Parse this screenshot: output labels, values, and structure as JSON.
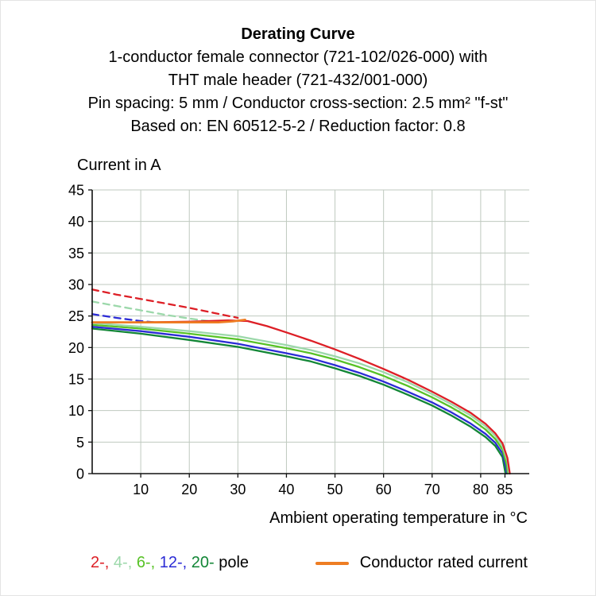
{
  "header": {
    "title": "Derating Curve",
    "lines": [
      "1-conductor female connector (721-102/026-000) with",
      "THT male header (721-432/001-000)",
      "Pin spacing: 5 mm / Conductor cross-section: 2.5 mm² \"f-st\"",
      "Based on: EN 60512-5-2 / Reduction factor: 0.8"
    ]
  },
  "chart_data": {
    "type": "line",
    "title": "Derating Curve",
    "xlabel": "Ambient operating temperature in °C",
    "ylabel": "Current in A",
    "xlim": [
      0,
      90
    ],
    "ylim": [
      0,
      45
    ],
    "xticks": [
      10,
      20,
      30,
      40,
      50,
      60,
      70,
      80,
      85
    ],
    "yticks": [
      0,
      5,
      10,
      15,
      20,
      25,
      30,
      35,
      40,
      45
    ],
    "grid": true,
    "legend_position": "bottom",
    "series": [
      {
        "name": "4-pole without reduction factor",
        "color": "#9cd8aa",
        "dashed": true,
        "points": [
          [
            0,
            27.3
          ],
          [
            5,
            26.6
          ],
          [
            10,
            25.9
          ],
          [
            15,
            25.2
          ],
          [
            20,
            24.6
          ],
          [
            25,
            24.1
          ]
        ]
      },
      {
        "name": "12-pole without reduction factor",
        "color": "#2b2bd5",
        "dashed": true,
        "points": [
          [
            0,
            25.3
          ],
          [
            5,
            24.7
          ],
          [
            10,
            24.2
          ],
          [
            13,
            24.0
          ]
        ]
      },
      {
        "name": "2-pole without reduction factor",
        "color": "#dd1f26",
        "dashed": true,
        "points": [
          [
            0,
            29.2
          ],
          [
            5,
            28.4
          ],
          [
            10,
            27.7
          ],
          [
            15,
            27.0
          ],
          [
            20,
            26.3
          ],
          [
            25,
            25.5
          ],
          [
            30,
            24.7
          ]
        ]
      },
      {
        "name": "20-pole",
        "color": "#128636",
        "dashed": false,
        "points": [
          [
            0,
            23.0
          ],
          [
            10,
            22.2
          ],
          [
            20,
            21.2
          ],
          [
            30,
            20.1
          ],
          [
            40,
            18.6
          ],
          [
            45,
            17.8
          ],
          [
            50,
            16.7
          ],
          [
            55,
            15.5
          ],
          [
            60,
            14.1
          ],
          [
            65,
            12.5
          ],
          [
            70,
            10.8
          ],
          [
            74,
            9.2
          ],
          [
            78,
            7.4
          ],
          [
            81,
            5.8
          ],
          [
            83,
            4.4
          ],
          [
            84.5,
            2.6
          ],
          [
            85.0,
            0.5
          ],
          [
            85.1,
            0
          ]
        ]
      },
      {
        "name": "12-pole",
        "color": "#2b2bd5",
        "dashed": false,
        "points": [
          [
            0,
            23.3
          ],
          [
            10,
            22.6
          ],
          [
            20,
            21.7
          ],
          [
            30,
            20.6
          ],
          [
            40,
            19.1
          ],
          [
            45,
            18.3
          ],
          [
            50,
            17.2
          ],
          [
            55,
            16.0
          ],
          [
            60,
            14.6
          ],
          [
            65,
            13.0
          ],
          [
            70,
            11.3
          ],
          [
            74,
            9.7
          ],
          [
            78,
            7.9
          ],
          [
            81,
            6.3
          ],
          [
            83,
            4.9
          ],
          [
            84.5,
            3.2
          ],
          [
            85.2,
            1.0
          ],
          [
            85.4,
            0
          ]
        ]
      },
      {
        "name": "6-pole",
        "color": "#57c226",
        "dashed": false,
        "points": [
          [
            0,
            23.6
          ],
          [
            10,
            23.0
          ],
          [
            20,
            22.2
          ],
          [
            30,
            21.3
          ],
          [
            40,
            19.9
          ],
          [
            45,
            19.1
          ],
          [
            50,
            18.1
          ],
          [
            55,
            16.9
          ],
          [
            60,
            15.5
          ],
          [
            65,
            13.9
          ],
          [
            70,
            12.1
          ],
          [
            74,
            10.5
          ],
          [
            78,
            8.7
          ],
          [
            81,
            7.0
          ],
          [
            83,
            5.5
          ],
          [
            84.5,
            3.8
          ],
          [
            85.3,
            1.5
          ],
          [
            85.6,
            0
          ]
        ]
      },
      {
        "name": "4-pole",
        "color": "#9cd8aa",
        "dashed": false,
        "points": [
          [
            0,
            23.9
          ],
          [
            10,
            23.3
          ],
          [
            20,
            22.6
          ],
          [
            30,
            21.8
          ],
          [
            40,
            20.4
          ],
          [
            45,
            19.6
          ],
          [
            50,
            18.6
          ],
          [
            55,
            17.5
          ],
          [
            60,
            16.1
          ],
          [
            65,
            14.5
          ],
          [
            70,
            12.6
          ],
          [
            74,
            11.0
          ],
          [
            78,
            9.2
          ],
          [
            81,
            7.5
          ],
          [
            83,
            6.0
          ],
          [
            84.5,
            4.3
          ],
          [
            85.5,
            2.0
          ],
          [
            85.8,
            0
          ]
        ]
      },
      {
        "name": "2-pole",
        "color": "#dd1f26",
        "dashed": false,
        "points": [
          [
            0,
            24.0
          ],
          [
            10,
            24.0
          ],
          [
            20,
            24.1
          ],
          [
            28,
            24.3
          ],
          [
            32,
            24.2
          ],
          [
            36,
            23.4
          ],
          [
            40,
            22.4
          ],
          [
            45,
            21.1
          ],
          [
            50,
            19.7
          ],
          [
            55,
            18.2
          ],
          [
            60,
            16.6
          ],
          [
            65,
            14.9
          ],
          [
            70,
            13.0
          ],
          [
            74,
            11.4
          ],
          [
            78,
            9.6
          ],
          [
            81,
            7.9
          ],
          [
            83,
            6.4
          ],
          [
            84.5,
            4.8
          ],
          [
            85.5,
            2.5
          ],
          [
            86,
            0
          ]
        ]
      },
      {
        "name": "Conductor rated current",
        "color": "#ee7d23",
        "dashed": false,
        "width": 2.8,
        "points": [
          [
            0,
            24.0
          ],
          [
            26,
            24.0
          ],
          [
            29,
            24.15
          ],
          [
            31.5,
            24.4
          ]
        ]
      }
    ]
  },
  "legend": {
    "pole_items": [
      {
        "label": "2-",
        "color": "#dd1f26"
      },
      {
        "label": "4-",
        "color": "#9cd8aa"
      },
      {
        "label": "6-",
        "color": "#57c226"
      },
      {
        "label": "12-",
        "color": "#2b2bd5"
      },
      {
        "label": "20-",
        "color": "#128636"
      }
    ],
    "separator": ", ",
    "pole_suffix": " pole",
    "rated_label": "Conductor rated current",
    "rated_color": "#ee7d23"
  }
}
